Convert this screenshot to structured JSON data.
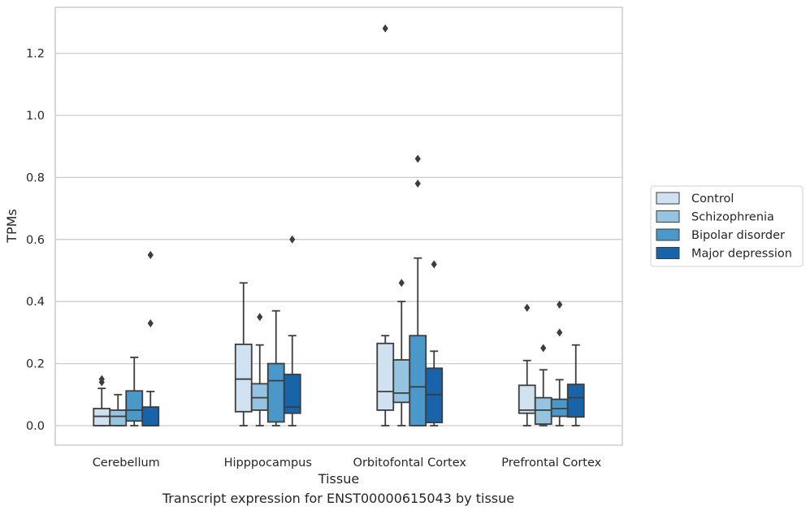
{
  "chart_data": {
    "type": "boxplot",
    "title": "",
    "caption": "Transcript expression for ENST00000615043 by tissue",
    "xlabel": "Tissue",
    "ylabel": "TPMs",
    "ylim": [
      -0.06,
      1.35
    ],
    "yticks": [
      0.0,
      0.2,
      0.4,
      0.6,
      0.8,
      1.0,
      1.2
    ],
    "ytick_labels": [
      "0.0",
      "0.2",
      "0.4",
      "0.6",
      "0.8",
      "1.0",
      "1.2"
    ],
    "grid": "horizontal",
    "legend_position": "right",
    "categories": [
      "Cerebellum",
      "Hipppocampus",
      "Orbitofontal Cortex",
      "Prefrontal Cortex"
    ],
    "series": [
      {
        "name": "Control",
        "color": "#d0e1f2",
        "boxes": [
          {
            "whislo": 0.0,
            "q1": 0.0,
            "med": 0.03,
            "q3": 0.055,
            "whishi": 0.12,
            "fliers": [
              0.14,
              0.15
            ]
          },
          {
            "whislo": 0.0,
            "q1": 0.045,
            "med": 0.15,
            "q3": 0.262,
            "whishi": 0.46,
            "fliers": []
          },
          {
            "whislo": 0.0,
            "q1": 0.05,
            "med": 0.11,
            "q3": 0.265,
            "whishi": 0.29,
            "fliers": [
              1.28
            ]
          },
          {
            "whislo": 0.0,
            "q1": 0.04,
            "med": 0.05,
            "q3": 0.13,
            "whishi": 0.21,
            "fliers": [
              0.38
            ]
          }
        ]
      },
      {
        "name": "Schizophrenia",
        "color": "#94c4df",
        "boxes": [
          {
            "whislo": 0.0,
            "q1": 0.0,
            "med": 0.03,
            "q3": 0.05,
            "whishi": 0.1,
            "fliers": []
          },
          {
            "whislo": 0.0,
            "q1": 0.05,
            "med": 0.09,
            "q3": 0.135,
            "whishi": 0.26,
            "fliers": [
              0.35
            ]
          },
          {
            "whislo": 0.0,
            "q1": 0.075,
            "med": 0.105,
            "q3": 0.212,
            "whishi": 0.4,
            "fliers": [
              0.46
            ]
          },
          {
            "whislo": 0.0,
            "q1": 0.005,
            "med": 0.05,
            "q3": 0.09,
            "whishi": 0.18,
            "fliers": [
              0.25
            ]
          }
        ]
      },
      {
        "name": "Bipolar disorder",
        "color": "#4a98c9",
        "boxes": [
          {
            "whislo": 0.0,
            "q1": 0.015,
            "med": 0.05,
            "q3": 0.112,
            "whishi": 0.22,
            "fliers": []
          },
          {
            "whislo": 0.0,
            "q1": 0.012,
            "med": 0.145,
            "q3": 0.2,
            "whishi": 0.37,
            "fliers": []
          },
          {
            "whislo": 0.0,
            "q1": 0.0,
            "med": 0.125,
            "q3": 0.29,
            "whishi": 0.54,
            "fliers": [
              0.78,
              0.86
            ]
          },
          {
            "whislo": 0.0,
            "q1": 0.03,
            "med": 0.055,
            "q3": 0.085,
            "whishi": 0.148,
            "fliers": [
              0.3,
              0.39
            ]
          }
        ]
      },
      {
        "name": "Major depression",
        "color": "#1764ab",
        "boxes": [
          {
            "whislo": 0.0,
            "q1": 0.0,
            "med": 0.0,
            "q3": 0.06,
            "whishi": 0.11,
            "fliers": [
              0.33,
              0.55
            ]
          },
          {
            "whislo": 0.0,
            "q1": 0.04,
            "med": 0.06,
            "q3": 0.165,
            "whishi": 0.29,
            "fliers": [
              0.6
            ]
          },
          {
            "whislo": 0.0,
            "q1": 0.01,
            "med": 0.1,
            "q3": 0.185,
            "whishi": 0.24,
            "fliers": [
              0.52
            ]
          },
          {
            "whislo": 0.0,
            "q1": 0.028,
            "med": 0.09,
            "q3": 0.133,
            "whishi": 0.26,
            "fliers": []
          }
        ]
      }
    ]
  }
}
